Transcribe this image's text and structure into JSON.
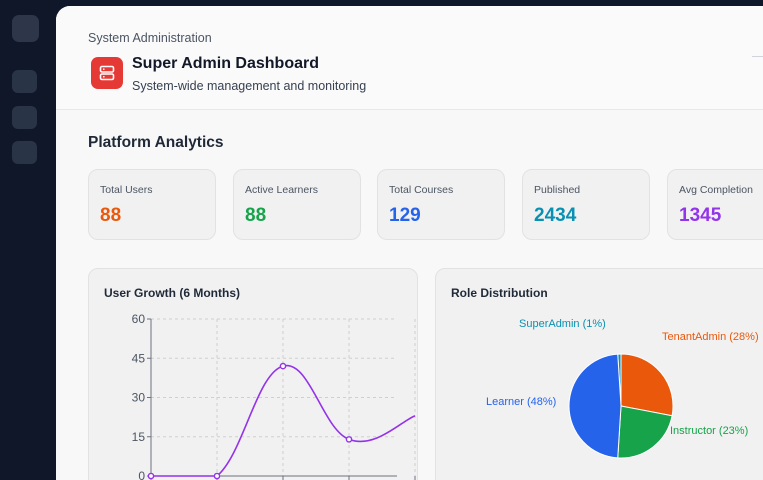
{
  "header": {
    "breadcrumb": "System Administration",
    "title": "Super Admin Dashboard",
    "subtitle": "System-wide management and monitoring"
  },
  "analytics": {
    "title": "Platform Analytics",
    "stats": [
      {
        "label": "Total Users",
        "value": "88",
        "color": "#ea580c"
      },
      {
        "label": "Active Learners",
        "value": "88",
        "color": "#16a34a"
      },
      {
        "label": "Total Courses",
        "value": "129",
        "color": "#2563eb"
      },
      {
        "label": "Published",
        "value": "2434",
        "color": "#0891b2"
      },
      {
        "label": "Avg Completion",
        "value": "1345",
        "color": "#9333ea"
      }
    ]
  },
  "colors": {
    "accent": "#e53935",
    "line": "#9333ea"
  },
  "icons": {
    "logo": "server-icon"
  },
  "chart_data": [
    {
      "type": "line",
      "title": "User Growth (6 Months)",
      "y_ticks": [
        "0",
        "15",
        "30",
        "45",
        "60"
      ],
      "ylim": [
        0,
        60
      ],
      "values": [
        0,
        0,
        42,
        14,
        23
      ],
      "grid": true,
      "legend": "none",
      "color": "#9333ea"
    },
    {
      "type": "pie",
      "title": "Role Distribution",
      "series": [
        {
          "name": "SuperAdmin (1%)",
          "value": 1,
          "color": "#0891b2"
        },
        {
          "name": "TenantAdmin (28%)",
          "value": 28,
          "color": "#ea580c"
        },
        {
          "name": "Instructor (23%)",
          "value": 23,
          "color": "#16a34a"
        },
        {
          "name": "Learner (48%)",
          "value": 48,
          "color": "#2563eb"
        }
      ]
    }
  ]
}
